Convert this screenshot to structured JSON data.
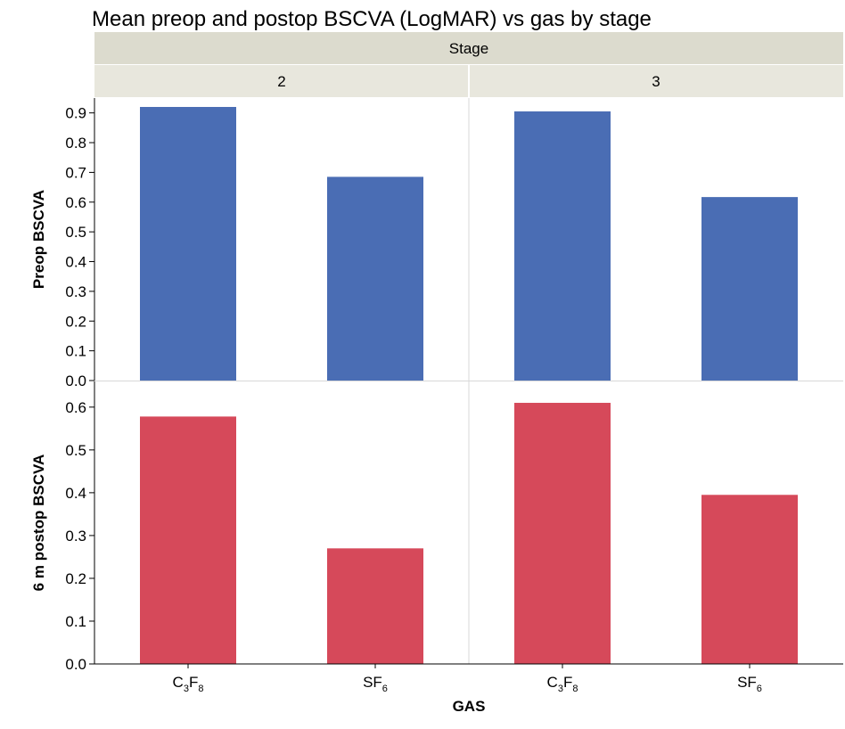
{
  "chart_data": {
    "type": "bar",
    "title": "Mean preop and postop BSCVA (LogMAR) vs gas by stage",
    "facet_label": "Stage",
    "facets": [
      "2",
      "3"
    ],
    "xlabel": "GAS",
    "categories": [
      {
        "base": "C",
        "sub1": "3",
        "mid": "F",
        "sub2": "8"
      },
      {
        "base": "SF",
        "sub1": "6",
        "mid": "",
        "sub2": ""
      }
    ],
    "panels": [
      {
        "ylabel": "Preop BSCVA",
        "color": "#4a6db4",
        "ylim": [
          0,
          0.95
        ],
        "yticks": [
          "0.0",
          "0.1",
          "0.2",
          "0.3",
          "0.4",
          "0.5",
          "0.6",
          "0.7",
          "0.8",
          "0.9"
        ],
        "values": [
          [
            0.92,
            0.685
          ],
          [
            0.905,
            0.617
          ]
        ]
      },
      {
        "ylabel": "6 m postop BSCVA",
        "color": "#d6495a",
        "ylim": [
          0,
          0.66
        ],
        "yticks": [
          "0.0",
          "0.1",
          "0.2",
          "0.3",
          "0.4",
          "0.5",
          "0.6"
        ],
        "values": [
          [
            0.578,
            0.27
          ],
          [
            0.61,
            0.395
          ]
        ]
      }
    ],
    "strip_colors": {
      "header": "#dcdbce",
      "facet": "#e8e7dd"
    },
    "grid": false
  }
}
